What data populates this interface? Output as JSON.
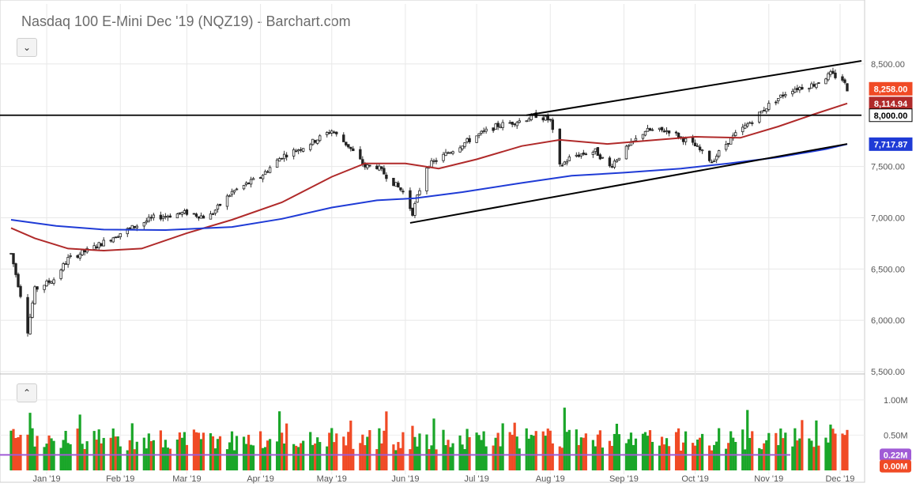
{
  "header": {
    "title": "Nasdaq 100 E-Mini Dec '19 (NQZ19) - Barchart.com",
    "price_collapse_glyph": "⌄",
    "volume_collapse_glyph": "⌃"
  },
  "colors": {
    "up": "#1aa629",
    "down": "#f04a25",
    "ma50": "#b02a2a",
    "ma200": "#1f3bd6",
    "trendline": "#000000",
    "vol_ma": "#a05bd6"
  },
  "chart_data": {
    "type": "candlestick",
    "instrument": "Nasdaq 100 E-Mini Dec '19 (NQZ19)",
    "x_range": [
      "2018-12-17",
      "2019-12-10"
    ],
    "y_range": [
      5500,
      8800
    ],
    "y_ticks": [
      {
        "value": 5500,
        "label": "5,500.00"
      },
      {
        "value": 6000,
        "label": "6,000.00"
      },
      {
        "value": 6500,
        "label": "6,500.00"
      },
      {
        "value": 7000,
        "label": "7,000.00"
      },
      {
        "value": 7500,
        "label": "7,500.00"
      },
      {
        "value": 8000,
        "label": "8,000.00"
      },
      {
        "value": 8500,
        "label": "8,500.00"
      }
    ],
    "x_ticks": [
      {
        "date": "2019-01-01",
        "label": "Jan '19"
      },
      {
        "date": "2019-02-01",
        "label": "Feb '19"
      },
      {
        "date": "2019-03-01",
        "label": "Mar '19"
      },
      {
        "date": "2019-04-01",
        "label": "Apr '19"
      },
      {
        "date": "2019-05-01",
        "label": "May '19"
      },
      {
        "date": "2019-06-01",
        "label": "Jun '19"
      },
      {
        "date": "2019-07-01",
        "label": "Jul '19"
      },
      {
        "date": "2019-08-01",
        "label": "Aug '19"
      },
      {
        "date": "2019-09-01",
        "label": "Sep '19"
      },
      {
        "date": "2019-10-01",
        "label": "Oct '19"
      },
      {
        "date": "2019-11-01",
        "label": "Nov '19"
      },
      {
        "date": "2019-12-01",
        "label": "Dec '19"
      }
    ],
    "price_path": [
      [
        "2018-12-17",
        6650
      ],
      [
        "2018-12-21",
        6250
      ],
      [
        "2018-12-24",
        5900
      ],
      [
        "2018-12-27",
        6300
      ],
      [
        "2019-01-04",
        6400
      ],
      [
        "2019-01-10",
        6600
      ],
      [
        "2019-01-20",
        6700
      ],
      [
        "2019-02-01",
        6850
      ],
      [
        "2019-02-15",
        7000
      ],
      [
        "2019-03-01",
        7050
      ],
      [
        "2019-03-10",
        7000
      ],
      [
        "2019-03-20",
        7250
      ],
      [
        "2019-04-01",
        7400
      ],
      [
        "2019-04-10",
        7600
      ],
      [
        "2019-04-20",
        7700
      ],
      [
        "2019-05-01",
        7850
      ],
      [
        "2019-05-08",
        7700
      ],
      [
        "2019-05-15",
        7500
      ],
      [
        "2019-05-20",
        7500
      ],
      [
        "2019-05-31",
        7250
      ],
      [
        "2019-06-04",
        7050
      ],
      [
        "2019-06-10",
        7500
      ],
      [
        "2019-06-20",
        7650
      ],
      [
        "2019-07-01",
        7800
      ],
      [
        "2019-07-10",
        7900
      ],
      [
        "2019-07-20",
        7950
      ],
      [
        "2019-07-26",
        8000
      ],
      [
        "2019-08-01",
        7950
      ],
      [
        "2019-08-05",
        7500
      ],
      [
        "2019-08-10",
        7600
      ],
      [
        "2019-08-20",
        7650
      ],
      [
        "2019-08-26",
        7500
      ],
      [
        "2019-09-01",
        7650
      ],
      [
        "2019-09-10",
        7850
      ],
      [
        "2019-09-20",
        7850
      ],
      [
        "2019-10-01",
        7700
      ],
      [
        "2019-10-08",
        7550
      ],
      [
        "2019-10-15",
        7750
      ],
      [
        "2019-10-25",
        7950
      ],
      [
        "2019-11-01",
        8100
      ],
      [
        "2019-11-10",
        8250
      ],
      [
        "2019-11-20",
        8300
      ],
      [
        "2019-11-27",
        8400
      ],
      [
        "2019-12-02",
        8350
      ],
      [
        "2019-12-04",
        8258
      ]
    ],
    "moving_averages": [
      {
        "color": "#b02a2a",
        "points": [
          [
            "2018-12-17",
            6900
          ],
          [
            "2018-12-27",
            6800
          ],
          [
            "2019-01-10",
            6700
          ],
          [
            "2019-01-25",
            6680
          ],
          [
            "2019-02-10",
            6700
          ],
          [
            "2019-03-01",
            6850
          ],
          [
            "2019-03-20",
            6980
          ],
          [
            "2019-04-10",
            7150
          ],
          [
            "2019-05-01",
            7400
          ],
          [
            "2019-05-15",
            7530
          ],
          [
            "2019-06-01",
            7530
          ],
          [
            "2019-06-15",
            7480
          ],
          [
            "2019-07-01",
            7570
          ],
          [
            "2019-07-20",
            7700
          ],
          [
            "2019-08-05",
            7760
          ],
          [
            "2019-08-25",
            7720
          ],
          [
            "2019-09-15",
            7760
          ],
          [
            "2019-10-01",
            7790
          ],
          [
            "2019-10-20",
            7780
          ],
          [
            "2019-11-05",
            7890
          ],
          [
            "2019-11-20",
            8010
          ],
          [
            "2019-12-04",
            8115
          ]
        ]
      },
      {
        "color": "#1f3bd6",
        "points": [
          [
            "2018-12-17",
            6980
          ],
          [
            "2019-01-05",
            6920
          ],
          [
            "2019-01-25",
            6885
          ],
          [
            "2019-02-20",
            6880
          ],
          [
            "2019-03-20",
            6910
          ],
          [
            "2019-04-10",
            6990
          ],
          [
            "2019-05-01",
            7100
          ],
          [
            "2019-05-20",
            7170
          ],
          [
            "2019-06-05",
            7190
          ],
          [
            "2019-06-25",
            7250
          ],
          [
            "2019-07-20",
            7340
          ],
          [
            "2019-08-10",
            7410
          ],
          [
            "2019-09-01",
            7440
          ],
          [
            "2019-09-25",
            7480
          ],
          [
            "2019-10-15",
            7530
          ],
          [
            "2019-11-05",
            7590
          ],
          [
            "2019-11-25",
            7670
          ],
          [
            "2019-12-04",
            7718
          ]
        ]
      }
    ],
    "trendlines": [
      {
        "from": [
          "2019-07-22",
          8000
        ],
        "to": [
          "2019-12-10",
          8530
        ]
      },
      {
        "from": [
          "2019-06-03",
          6950
        ],
        "to": [
          "2019-12-04",
          7720
        ]
      },
      {
        "from": [
          "2018-12-17",
          8000
        ],
        "to": [
          "2019-12-10",
          8000
        ]
      }
    ],
    "price_badges": [
      {
        "value": 8258,
        "label": "8,258.00",
        "color": "#f04a25"
      },
      {
        "value": 8114.94,
        "label": "8,114.94",
        "color": "#b02a2a"
      },
      {
        "value": 8000,
        "label": "8,000.00",
        "color": "#ffffff"
      },
      {
        "value": 7717.87,
        "label": "7,717.87",
        "color": "#1f3bd6"
      }
    ],
    "volume": {
      "y_ticks": [
        {
          "value": 0.5,
          "label": "0.50M"
        },
        {
          "value": 1.0,
          "label": "1.00M"
        }
      ],
      "badges": [
        {
          "label": "0.22M",
          "color": "#a05bd6"
        },
        {
          "label": "0.00M",
          "color": "#f04a25"
        }
      ],
      "y_range": [
        0,
        1.2
      ]
    }
  }
}
